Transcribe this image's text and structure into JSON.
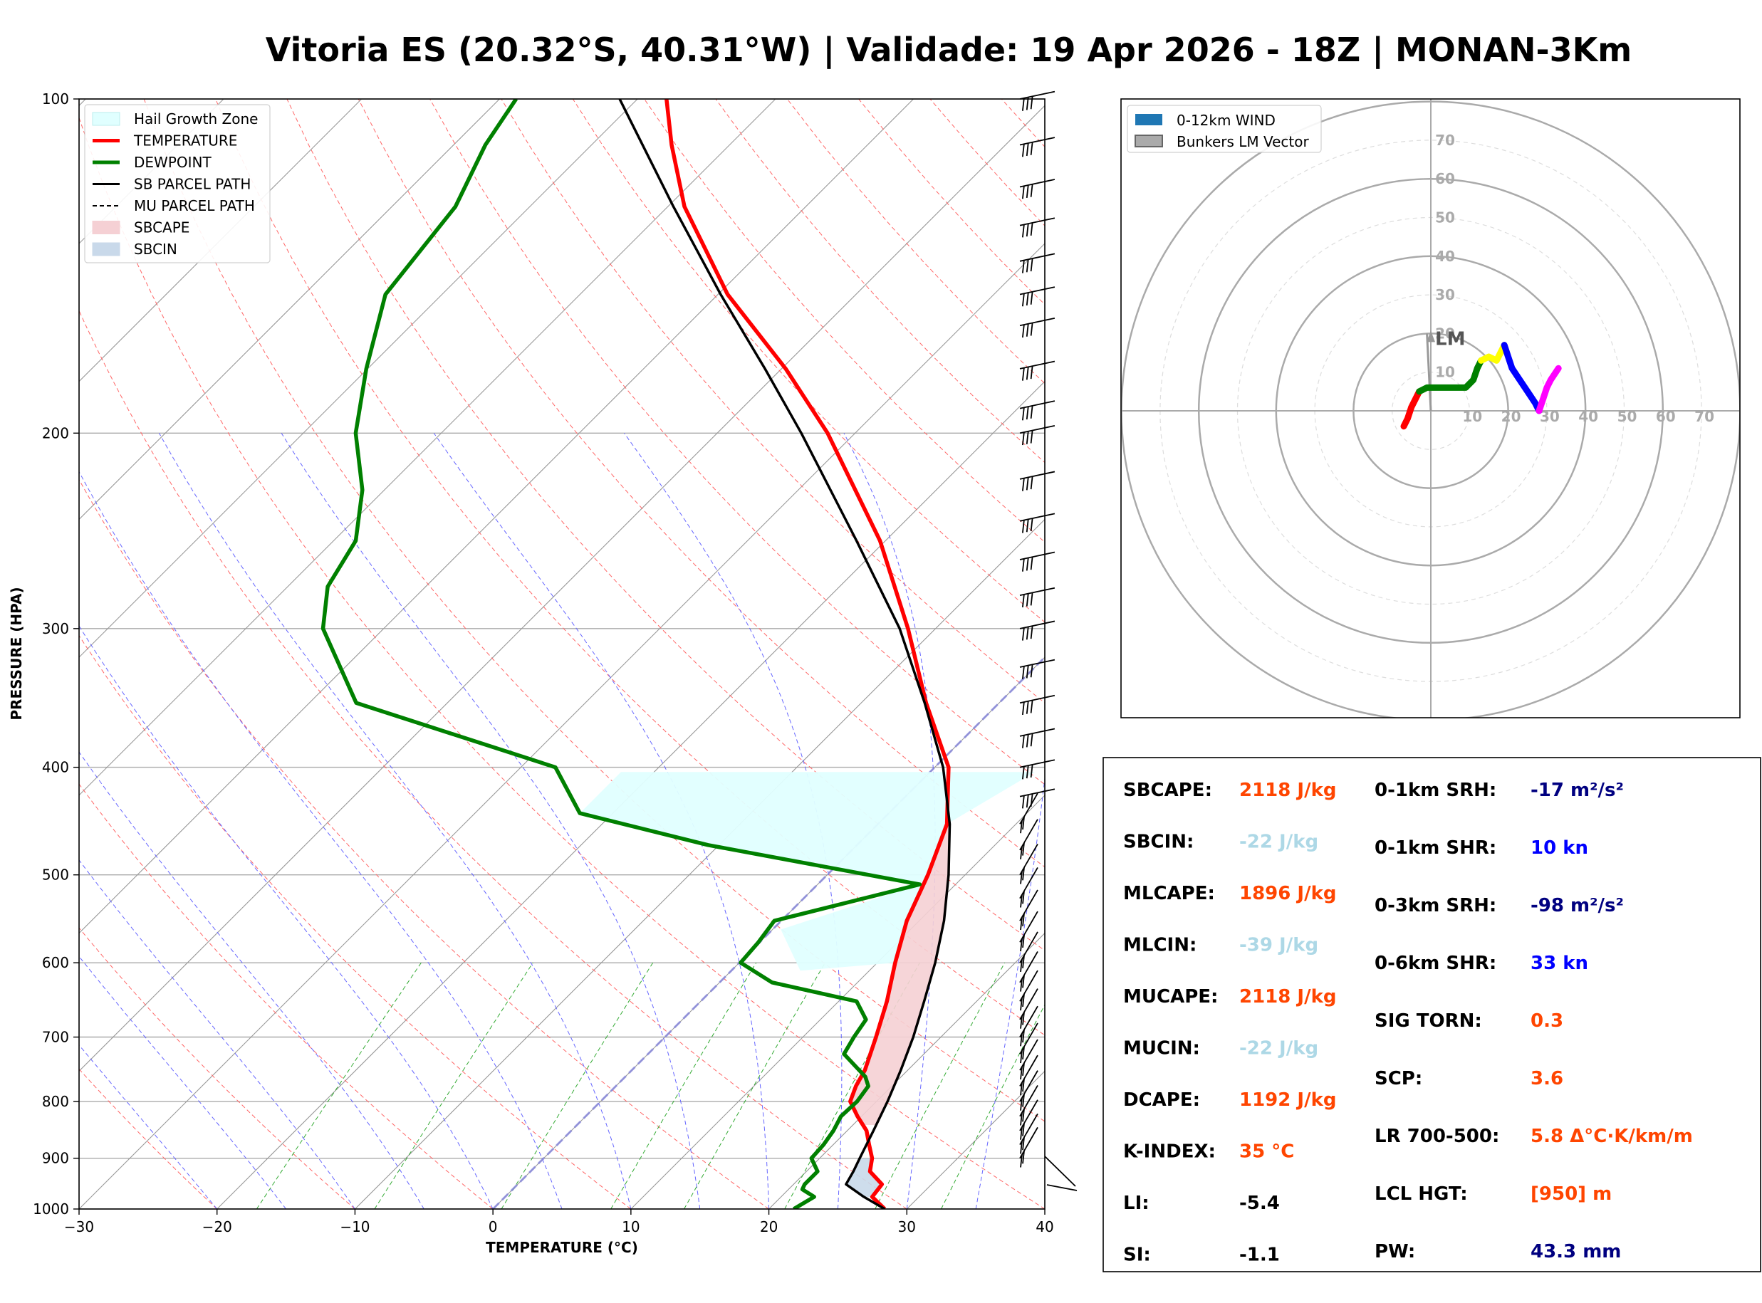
{
  "chart_data": {
    "type": "line",
    "title": "Vitoria ES (20.32°S, 40.31°W) | Validade: 19 Apr 2026 - 18Z | MONAN-3Km",
    "xlabel": "TEMPERATURE (°C)",
    "ylabel": "PRESSURE (HPA)",
    "xlim": [
      -30,
      40
    ],
    "ylim": [
      1000,
      100
    ],
    "x_ticks": [
      "−30",
      "−20",
      "−10",
      "0",
      "10",
      "20",
      "30",
      "40"
    ],
    "y_ticks": [
      {
        "p": 100,
        "label": "100"
      },
      {
        "p": 200,
        "label": "200"
      },
      {
        "p": 300,
        "label": "300"
      },
      {
        "p": 400,
        "label": "400"
      },
      {
        "p": 500,
        "label": "500"
      },
      {
        "p": 600,
        "label": "600"
      },
      {
        "p": 700,
        "label": "700"
      },
      {
        "p": 800,
        "label": "800"
      },
      {
        "p": 900,
        "label": "900"
      },
      {
        "p": 1000,
        "label": "1000"
      }
    ],
    "legend": {
      "position": "top-left",
      "entries": [
        {
          "label": "Hail Growth Zone",
          "kind": "patch",
          "color": "#e0ffff",
          "edge": "#bbeeee"
        },
        {
          "label": "TEMPERATURE",
          "kind": "line",
          "color": "#ff0000"
        },
        {
          "label": "DEWPOINT",
          "kind": "line",
          "color": "#008000"
        },
        {
          "label": "SB PARCEL PATH",
          "kind": "line",
          "color": "#000000"
        },
        {
          "label": "MU PARCEL PATH",
          "kind": "dashed",
          "color": "#000000"
        },
        {
          "label": "SBCAPE",
          "kind": "patch",
          "color": "#f5d0d4",
          "edge": "#f5d0d4"
        },
        {
          "label": "SBCIN",
          "kind": "patch",
          "color": "#c9d9ea",
          "edge": "#c9d9ea"
        }
      ]
    },
    "series": [
      {
        "name": "TEMPERATURE",
        "color": "#ff0000",
        "points": [
          [
            1000,
            28.4
          ],
          [
            975,
            26.6
          ],
          [
            950,
            26.4
          ],
          [
            925,
            24.6
          ],
          [
            900,
            23.8
          ],
          [
            875,
            22.6
          ],
          [
            850,
            21.4
          ],
          [
            825,
            19.7
          ],
          [
            800,
            18.1
          ],
          [
            775,
            17.4
          ],
          [
            750,
            16.9
          ],
          [
            700,
            15.3
          ],
          [
            650,
            13.5
          ],
          [
            600,
            11.3
          ],
          [
            550,
            9.1
          ],
          [
            500,
            7.3
          ],
          [
            450,
            5.0
          ],
          [
            400,
            1.0
          ],
          [
            350,
            -5.3
          ],
          [
            300,
            -12.0
          ],
          [
            250,
            -20.4
          ],
          [
            200,
            -32.0
          ],
          [
            175,
            -39.7
          ],
          [
            150,
            -49.3
          ],
          [
            125,
            -58.8
          ],
          [
            110,
            -64.2
          ],
          [
            100,
            -67.9
          ]
        ]
      },
      {
        "name": "DEWPOINT",
        "color": "#008000",
        "points": [
          [
            1000,
            21.8
          ],
          [
            975,
            22.4
          ],
          [
            960,
            21.0
          ],
          [
            950,
            20.8
          ],
          [
            925,
            20.8
          ],
          [
            900,
            19.4
          ],
          [
            875,
            19.3
          ],
          [
            850,
            19.0
          ],
          [
            825,
            18.5
          ],
          [
            800,
            18.6
          ],
          [
            775,
            18.3
          ],
          [
            760,
            17.4
          ],
          [
            725,
            14.2
          ],
          [
            700,
            13.7
          ],
          [
            675,
            13.3
          ],
          [
            650,
            11.3
          ],
          [
            625,
            3.8
          ],
          [
            600,
            0.1
          ],
          [
            575,
            -0.1
          ],
          [
            550,
            -0.5
          ],
          [
            510,
            7.4
          ],
          [
            470,
            -10.8
          ],
          [
            440,
            -22.4
          ],
          [
            400,
            -27.5
          ],
          [
            350,
            -46.6
          ],
          [
            300,
            -54.4
          ],
          [
            275,
            -57.1
          ],
          [
            250,
            -58.4
          ],
          [
            225,
            -61.6
          ],
          [
            200,
            -66.2
          ],
          [
            175,
            -70.1
          ],
          [
            150,
            -74.1
          ],
          [
            125,
            -75.4
          ],
          [
            110,
            -77.7
          ],
          [
            100,
            -78.8
          ]
        ]
      },
      {
        "name": "SB PARCEL PATH",
        "color": "#000000",
        "points": [
          [
            1000,
            28.4
          ],
          [
            975,
            26.0
          ],
          [
            950,
            23.8
          ],
          [
            925,
            23.4
          ],
          [
            900,
            22.9
          ],
          [
            850,
            21.9
          ],
          [
            800,
            20.8
          ],
          [
            750,
            19.5
          ],
          [
            700,
            18.0
          ],
          [
            650,
            16.2
          ],
          [
            600,
            14.2
          ],
          [
            550,
            11.8
          ],
          [
            500,
            8.8
          ],
          [
            450,
            5.2
          ],
          [
            400,
            0.6
          ],
          [
            350,
            -5.4
          ],
          [
            300,
            -12.6
          ],
          [
            250,
            -22.1
          ],
          [
            200,
            -33.9
          ],
          [
            175,
            -41.2
          ],
          [
            150,
            -49.8
          ],
          [
            125,
            -59.6
          ],
          [
            100,
            -71.3
          ]
        ]
      }
    ],
    "hail_growth_zone": [
      [
        404,
        -22.4
      ],
      [
        404,
        7.6
      ],
      [
        450,
        5.0
      ],
      [
        500,
        7.3
      ],
      [
        550,
        9.1
      ],
      [
        600,
        11.3
      ],
      [
        610,
        5.0
      ],
      [
        560,
        0.6
      ],
      [
        510,
        7.4
      ],
      [
        470,
        -10.8
      ],
      [
        440,
        -22.4
      ]
    ],
    "annotations": [
      "Hail Growth Zone"
    ],
    "hodograph": {
      "legend": [
        "0-12km WIND",
        "Bunkers LM Vector"
      ],
      "rings": [
        "10",
        "20",
        "30",
        "40",
        "50",
        "60",
        "70"
      ],
      "lm_label": "LM",
      "lm_vector": [
        -1,
        20
      ],
      "segments": [
        {
          "color": "#ff0000",
          "points": [
            [
              -7,
              -4
            ],
            [
              -6,
              -2
            ],
            [
              -5,
              1
            ],
            [
              -4,
              3
            ],
            [
              -3,
              5
            ]
          ]
        },
        {
          "color": "#008000",
          "points": [
            [
              -3,
              5
            ],
            [
              -1,
              6
            ],
            [
              3,
              6
            ],
            [
              7,
              6
            ],
            [
              9,
              6
            ],
            [
              11,
              8
            ],
            [
              12,
              11
            ],
            [
              13,
              13
            ]
          ]
        },
        {
          "color": "#ffff00",
          "points": [
            [
              13,
              13
            ],
            [
              15,
              14
            ],
            [
              17,
              13
            ],
            [
              18,
              15
            ],
            [
              19,
              17
            ]
          ]
        },
        {
          "color": "#0000ff",
          "points": [
            [
              19,
              17
            ],
            [
              20,
              14
            ],
            [
              21,
              11
            ],
            [
              23,
              8
            ],
            [
              25,
              5
            ],
            [
              27,
              2
            ],
            [
              28,
              0
            ]
          ]
        },
        {
          "color": "#ff00ff",
          "points": [
            [
              28,
              0
            ],
            [
              29,
              3
            ],
            [
              30,
              6
            ],
            [
              31,
              8
            ],
            [
              33,
              11
            ]
          ]
        }
      ]
    }
  },
  "indices": {
    "left": [
      {
        "label": "SBCAPE:",
        "value": "2118 J/kg",
        "color": "#ff4500"
      },
      {
        "label": "SBCIN:",
        "value": "-22 J/kg",
        "color": "#add8e6"
      },
      {
        "label": "MLCAPE:",
        "value": "1896 J/kg",
        "color": "#ff4500"
      },
      {
        "label": "MLCIN:",
        "value": "-39 J/kg",
        "color": "#add8e6"
      },
      {
        "label": "MUCAPE:",
        "value": "2118 J/kg",
        "color": "#ff4500"
      },
      {
        "label": "MUCIN:",
        "value": "-22 J/kg",
        "color": "#add8e6"
      },
      {
        "label": "DCAPE:",
        "value": "1192 J/kg",
        "color": "#ff4500"
      },
      {
        "label": "K-INDEX:",
        "value": "35 °C",
        "color": "#ff4500"
      },
      {
        "label": "LI:",
        "value": "-5.4",
        "color": "#000000"
      },
      {
        "label": "SI:",
        "value": "-1.1",
        "color": "#000000"
      }
    ],
    "right": [
      {
        "label": "0-1km SRH:",
        "value": "-17 m²/s²",
        "color": "#000080"
      },
      {
        "label": "0-1km SHR:",
        "value": "10 kn",
        "color": "#0000ff"
      },
      {
        "label": "0-3km SRH:",
        "value": "-98 m²/s²",
        "color": "#000080"
      },
      {
        "label": "0-6km SHR:",
        "value": "33 kn",
        "color": "#0000ff"
      },
      {
        "label": "SIG TORN:",
        "value": "0.3",
        "color": "#ff4500"
      },
      {
        "label": "SCP:",
        "value": "3.6",
        "color": "#ff4500"
      },
      {
        "label": "LR 700-500:",
        "value": "5.8 Δ°C·K/km/m",
        "color": "#ff4500"
      },
      {
        "label": "LCL HGT:",
        "value": "[950] m",
        "color": "#ff4500"
      },
      {
        "label": "PW:",
        "value": "43.3 mm",
        "color": "#000080"
      }
    ]
  }
}
